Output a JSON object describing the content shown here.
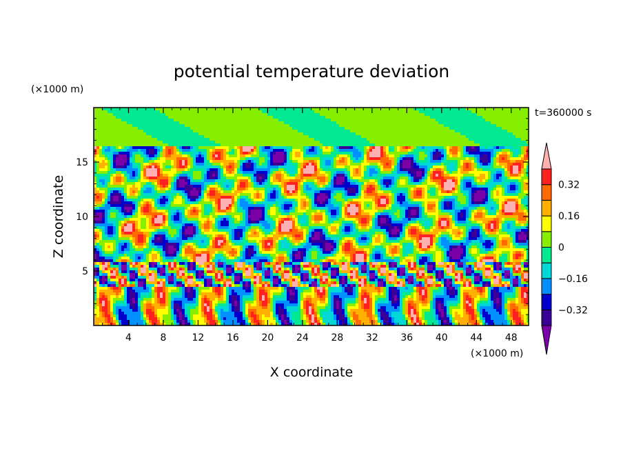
{
  "chart_data": {
    "type": "heatmap",
    "title": "potential temperature deviation",
    "xlabel": "X coordinate",
    "ylabel": "Z coordinate",
    "x_unit": "(×1000 m)",
    "y_unit": "(×1000 m)",
    "time_label": "t=360000 s",
    "xlim": [
      0,
      50
    ],
    "ylim": [
      0,
      20
    ],
    "x_ticks": [
      4,
      8,
      12,
      16,
      20,
      24,
      28,
      32,
      36,
      40,
      44,
      48
    ],
    "x_tick_labels": [
      "4",
      "8",
      "12",
      "16",
      "20",
      "24",
      "28",
      "32",
      "36",
      "40",
      "44",
      "48"
    ],
    "y_ticks": [
      5,
      10,
      15
    ],
    "y_tick_labels": [
      "5",
      "10",
      "15"
    ],
    "colorbar": {
      "levels": [
        -0.4,
        -0.32,
        -0.24,
        -0.16,
        -0.08,
        0,
        0.08,
        0.16,
        0.24,
        0.32,
        0.4
      ],
      "tick_values": [
        -0.32,
        -0.16,
        0,
        0.16,
        0.32
      ],
      "tick_labels": [
        "−0.32",
        "−0.16",
        "0",
        "0.16",
        "0.32"
      ],
      "colors": [
        "#7a00a8",
        "#3a0096",
        "#0000cd",
        "#0090ff",
        "#00d8d8",
        "#00e890",
        "#88ee00",
        "#ffff00",
        "#ffb000",
        "#ff6a00",
        "#ff2020",
        "#ffb0b0"
      ],
      "extend": "both"
    }
  }
}
